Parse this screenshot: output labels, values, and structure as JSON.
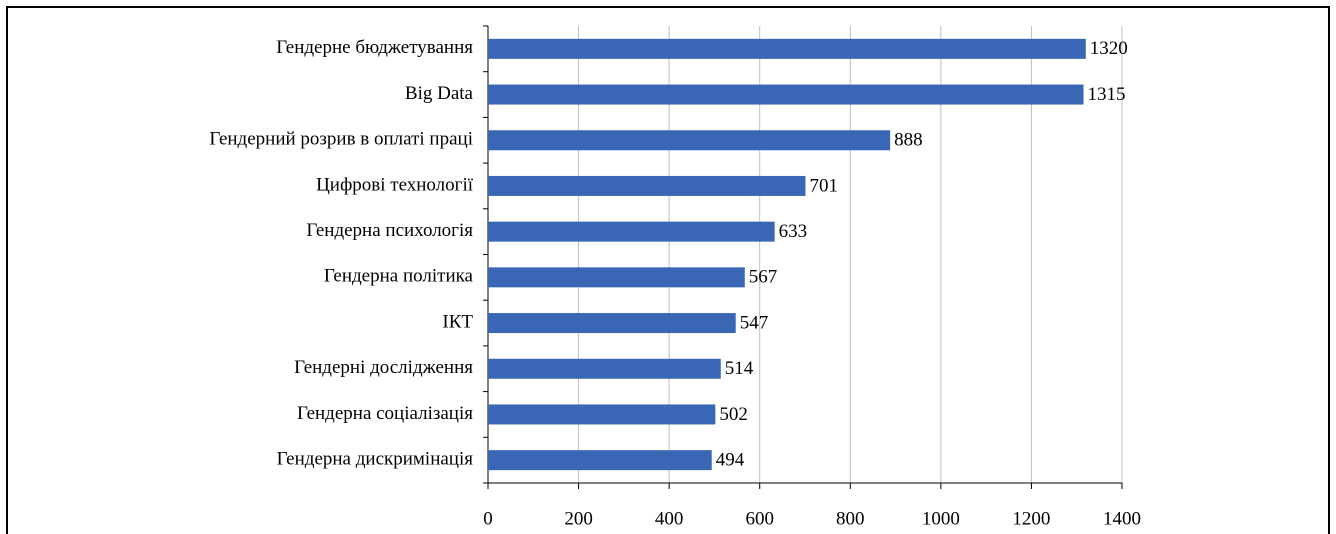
{
  "chart_data": {
    "type": "barh",
    "categories": [
      "Гендерне бюджетування",
      "Big Data",
      "Гендерний розрив в оплаті праці",
      "Цифрові технології",
      "Гендерна психологія",
      "Гендерна політика",
      "ІКТ",
      "Гендерні дослідження",
      "Гендерна соціалізація",
      "Гендерна дискримінація"
    ],
    "values": [
      1320,
      1315,
      888,
      701,
      633,
      567,
      547,
      514,
      502,
      494
    ],
    "color": "#3a67b5",
    "xlim": [
      0,
      1400
    ],
    "xticks": [
      0,
      200,
      400,
      600,
      800,
      1000,
      1200,
      1400
    ],
    "grid": true
  }
}
